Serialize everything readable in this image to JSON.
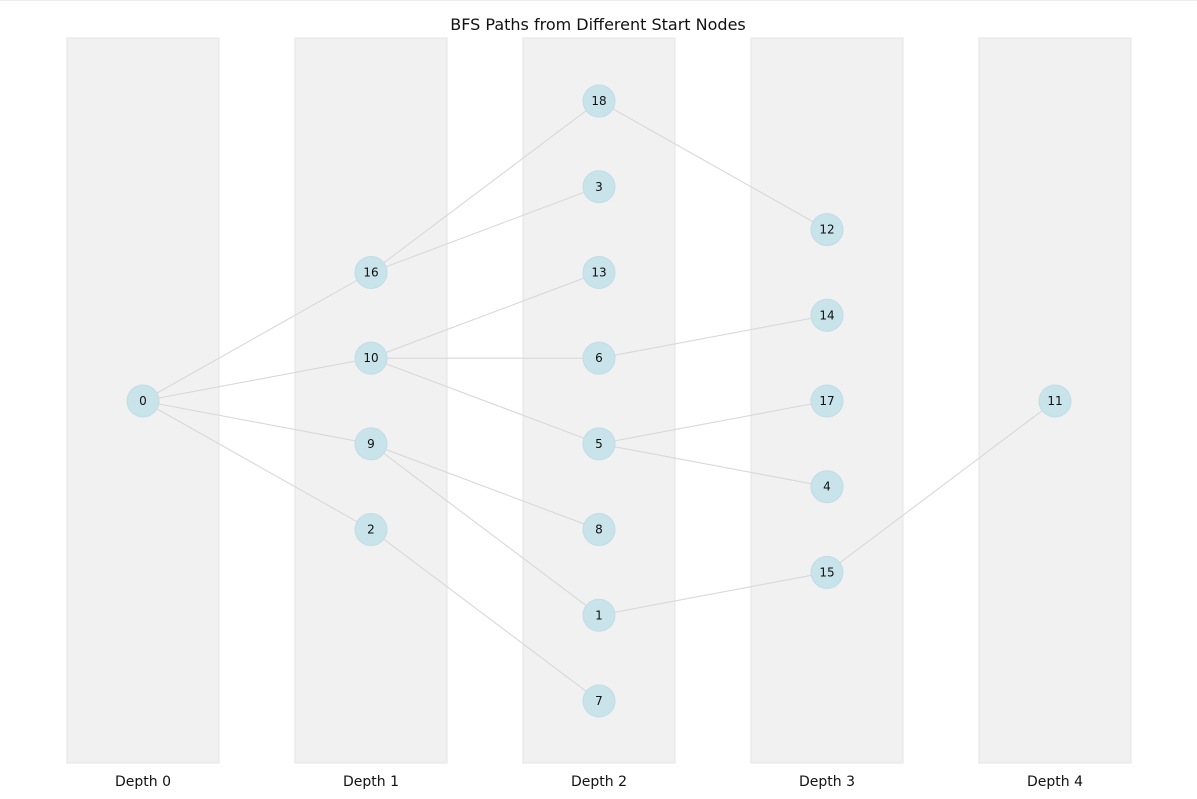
{
  "title": "BFS Paths from Different Start Nodes",
  "colors": {
    "band_fill": "#f1f1f1",
    "node_fill": "#c9e3ea",
    "edge": "#d8d8d8"
  },
  "depths": [
    {
      "label": "Depth 0",
      "nodes": [
        "0"
      ]
    },
    {
      "label": "Depth 1",
      "nodes": [
        "16",
        "10",
        "9",
        "2"
      ]
    },
    {
      "label": "Depth 2",
      "nodes": [
        "18",
        "3",
        "13",
        "6",
        "5",
        "8",
        "1",
        "7"
      ]
    },
    {
      "label": "Depth 3",
      "nodes": [
        "12",
        "14",
        "17",
        "4",
        "15"
      ]
    },
    {
      "label": "Depth 4",
      "nodes": [
        "11"
      ]
    }
  ],
  "edges": [
    [
      "0",
      "16"
    ],
    [
      "0",
      "10"
    ],
    [
      "0",
      "9"
    ],
    [
      "0",
      "2"
    ],
    [
      "16",
      "18"
    ],
    [
      "16",
      "3"
    ],
    [
      "10",
      "13"
    ],
    [
      "10",
      "6"
    ],
    [
      "10",
      "5"
    ],
    [
      "9",
      "8"
    ],
    [
      "9",
      "1"
    ],
    [
      "2",
      "7"
    ],
    [
      "18",
      "12"
    ],
    [
      "6",
      "14"
    ],
    [
      "5",
      "17"
    ],
    [
      "5",
      "4"
    ],
    [
      "1",
      "15"
    ],
    [
      "15",
      "11"
    ]
  ]
}
